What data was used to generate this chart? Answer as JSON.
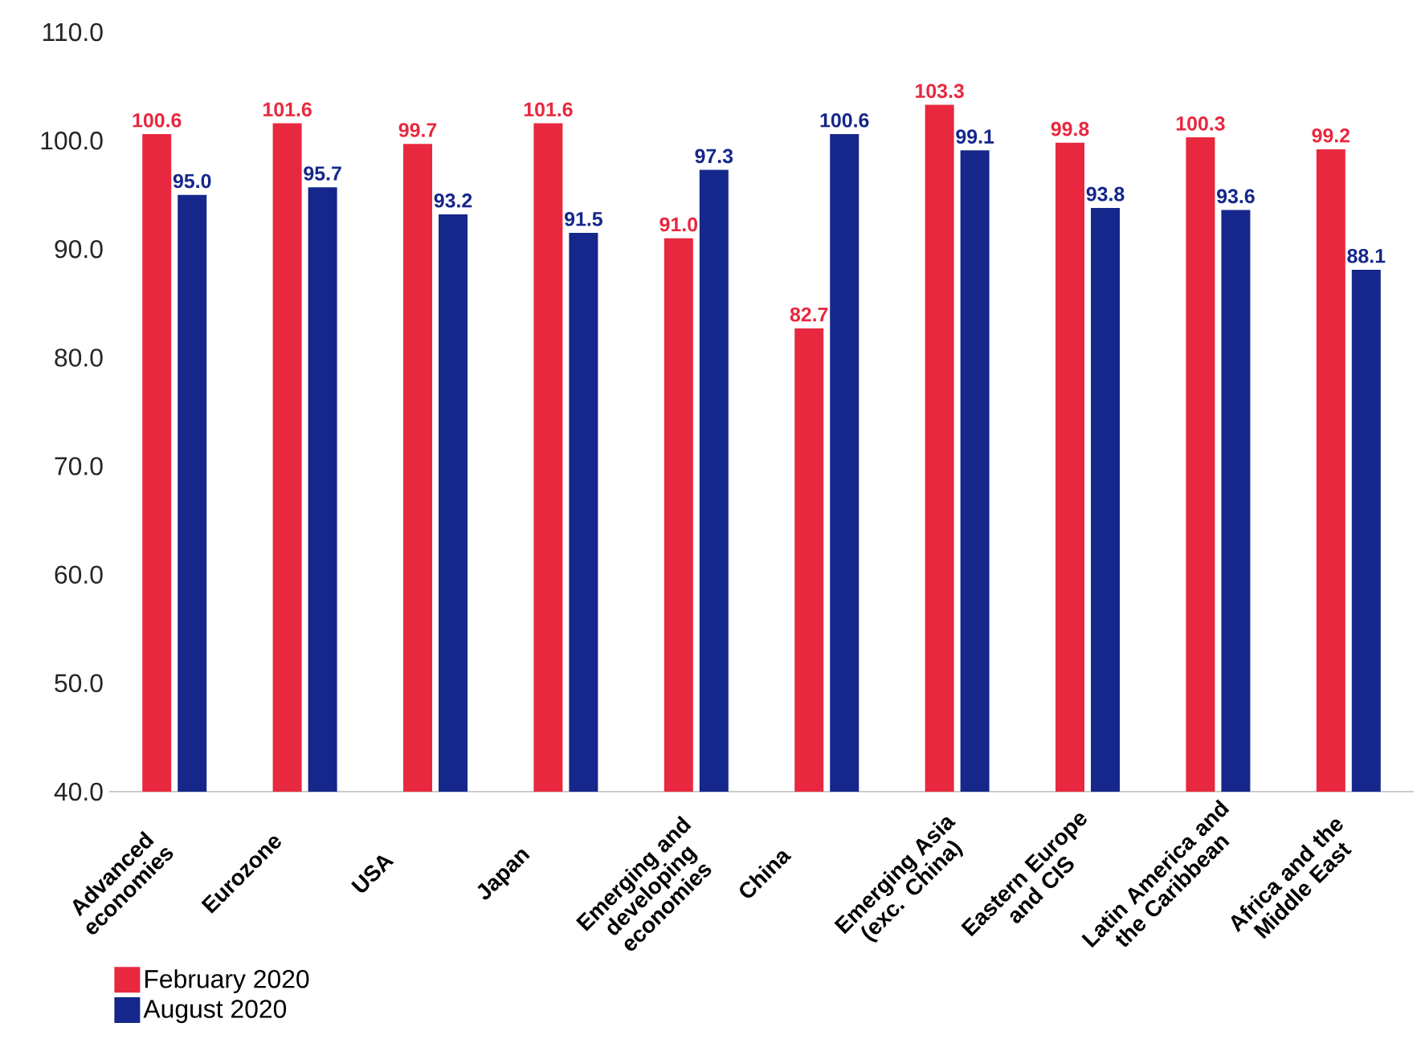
{
  "chart_data": {
    "type": "bar",
    "categories": [
      "Advanced economies",
      "Eurozone",
      "USA",
      "Japan",
      "Emerging and developing economies",
      "China",
      "Emerging Asia (exc. China)",
      "Eastern Europe and CIS",
      "Latin America and the Caribbean",
      "Africa and the Middle East"
    ],
    "series": [
      {
        "name": "February 2020",
        "color": "#e8283f",
        "values": [
          100.6,
          101.6,
          99.7,
          101.6,
          91.0,
          82.7,
          103.3,
          99.8,
          100.3,
          99.2
        ],
        "value_labels": [
          "100.6",
          "101.6",
          "99.7",
          "101.6",
          "91.0",
          "82.7",
          "103.3",
          "99.8",
          "100.3",
          "99.2"
        ]
      },
      {
        "name": "August 2020",
        "color": "#15278a",
        "values": [
          95.0,
          95.7,
          93.2,
          91.5,
          97.3,
          100.6,
          99.1,
          93.8,
          93.6,
          88.1
        ],
        "value_labels": [
          "95.0",
          "95.7",
          "93.2",
          "91.5",
          "97.3",
          "100.6",
          "99.1",
          "93.8",
          "93.6",
          "88.1"
        ]
      }
    ],
    "ylim": [
      40,
      110
    ],
    "yticks": [
      {
        "value": 40,
        "label": "40.0"
      },
      {
        "value": 50,
        "label": "50.0"
      },
      {
        "value": 60,
        "label": "60.0"
      },
      {
        "value": 70,
        "label": "70.0"
      },
      {
        "value": 80,
        "label": "80.0"
      },
      {
        "value": 90,
        "label": "90.0"
      },
      {
        "value": 100,
        "label": "100.0"
      },
      {
        "value": 110,
        "label": "110.0"
      }
    ],
    "legend": "bottom left"
  }
}
